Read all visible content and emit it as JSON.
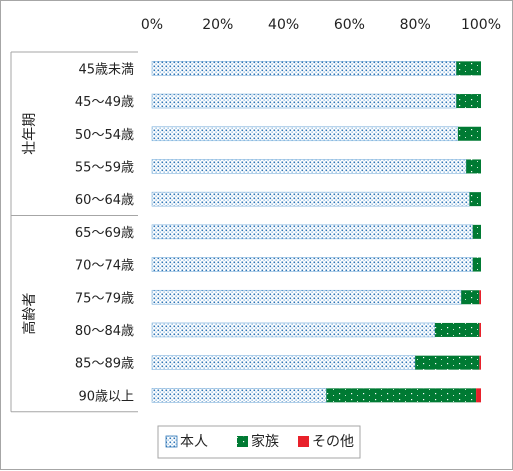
{
  "chart_data": {
    "type": "bar",
    "stacked": "percent",
    "orientation": "horizontal",
    "x_ticks": [
      "0%",
      "20%",
      "40%",
      "60%",
      "80%",
      "100%"
    ],
    "xlim": [
      0,
      100
    ],
    "groups": [
      {
        "label": "壮年期",
        "categories": [
          "45歳未満",
          "45～49歳",
          "50～54歳",
          "55～59歳",
          "60～64歳"
        ]
      },
      {
        "label": "高齢者",
        "categories": [
          "65～69歳",
          "70～74歳",
          "75～79歳",
          "80～84歳",
          "85～89歳",
          "90歳以上"
        ]
      }
    ],
    "categories": [
      "45歳未満",
      "45～49歳",
      "50～54歳",
      "55～59歳",
      "60～64歳",
      "65～69歳",
      "70～74歳",
      "75～79歳",
      "80～84歳",
      "85～89歳",
      "90歳以上"
    ],
    "series": [
      {
        "name": "本人",
        "color": "#2e75b6",
        "pattern": "dotted",
        "values": [
          92.5,
          92.5,
          93.0,
          95.5,
          96.5,
          97.5,
          97.5,
          94.0,
          86.0,
          80.0,
          53.0
        ]
      },
      {
        "name": "家族",
        "color": "#007a33",
        "values": [
          7.5,
          7.5,
          7.0,
          4.5,
          3.5,
          2.5,
          2.5,
          5.5,
          13.5,
          19.5,
          45.5
        ]
      },
      {
        "name": "その他",
        "color": "#e8212b",
        "values": [
          0,
          0,
          0,
          0,
          0,
          0,
          0,
          0.5,
          0.5,
          0.5,
          1.5
        ]
      }
    ],
    "legend_position": "bottom",
    "grid": false
  }
}
